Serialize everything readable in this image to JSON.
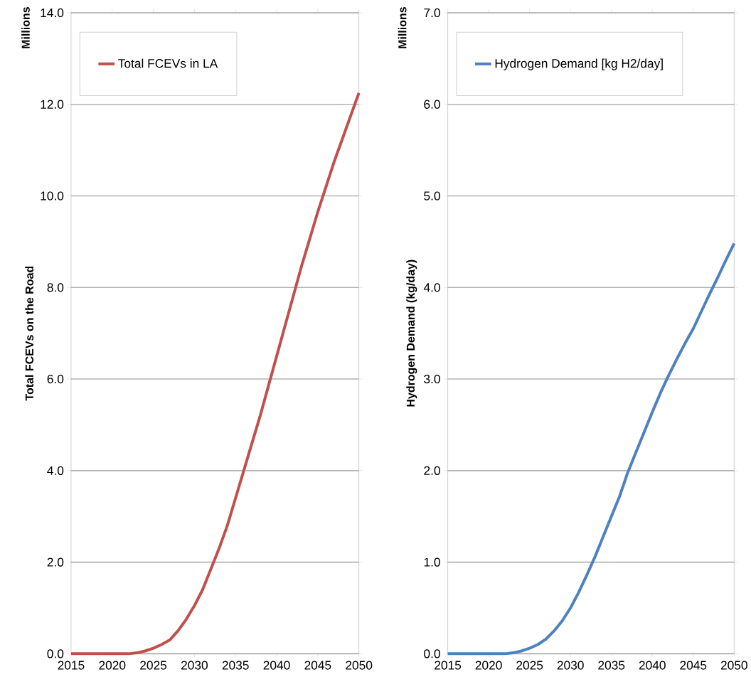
{
  "chart_data": [
    {
      "type": "line",
      "ylabel": "Total FCEVs on the Road",
      "annotations": [
        "Millions"
      ],
      "legend": "top left",
      "grid": "y",
      "xlim": [
        2015,
        2050
      ],
      "xticks": [
        2015,
        2020,
        2025,
        2030,
        2035,
        2040,
        2045,
        2050
      ],
      "ylim": [
        0,
        14
      ],
      "yticks": [
        {
          "value": 0,
          "label": "0.0"
        },
        {
          "value": 2,
          "label": "2.0"
        },
        {
          "value": 4,
          "label": "4.0"
        },
        {
          "value": 6,
          "label": "6.0"
        },
        {
          "value": 8,
          "label": "8.0"
        },
        {
          "value": 10,
          "label": "10.0"
        },
        {
          "value": 12,
          "label": "12.0"
        },
        {
          "value": 14,
          "label": "14.0"
        }
      ],
      "x": [
        2015,
        2016,
        2017,
        2018,
        2019,
        2020,
        2021,
        2022,
        2023,
        2024,
        2025,
        2026,
        2027,
        2028,
        2029,
        2030,
        2031,
        2032,
        2033,
        2034,
        2035,
        2036,
        2037,
        2038,
        2039,
        2040,
        2041,
        2042,
        2043,
        2044,
        2045,
        2046,
        2047,
        2048,
        2049,
        2050
      ],
      "series": [
        {
          "name": "Total FCEVs in LA",
          "color": "#c0504d",
          "values": [
            0,
            0,
            0,
            0,
            0,
            0,
            0,
            0,
            0.02,
            0.06,
            0.12,
            0.2,
            0.3,
            0.5,
            0.75,
            1.05,
            1.4,
            1.85,
            2.3,
            2.8,
            3.4,
            4.0,
            4.6,
            5.2,
            5.85,
            6.5,
            7.15,
            7.8,
            8.45,
            9.05,
            9.65,
            10.2,
            10.75,
            11.25,
            11.75,
            12.25
          ]
        }
      ]
    },
    {
      "type": "line",
      "ylabel": "Hydrogen Demand (kg/day)",
      "annotations": [
        "Millions"
      ],
      "legend": "top left",
      "grid": "y",
      "xlim": [
        2015,
        2050
      ],
      "xticks": [
        2015,
        2020,
        2025,
        2030,
        2035,
        2040,
        2045,
        2050
      ],
      "ylim": [
        0,
        7
      ],
      "yticks": [
        {
          "value": 0,
          "label": "0.0"
        },
        {
          "value": 1,
          "label": "1.0"
        },
        {
          "value": 2,
          "label": "2.0"
        },
        {
          "value": 3,
          "label": "3.0"
        },
        {
          "value": 4,
          "label": "4.0"
        },
        {
          "value": 5,
          "label": "5.0"
        },
        {
          "value": 6,
          "label": "6.0"
        },
        {
          "value": 7,
          "label": "7.0"
        }
      ],
      "x": [
        2015,
        2016,
        2017,
        2018,
        2019,
        2020,
        2021,
        2022,
        2023,
        2024,
        2025,
        2026,
        2027,
        2028,
        2029,
        2030,
        2031,
        2032,
        2033,
        2034,
        2035,
        2036,
        2037,
        2038,
        2039,
        2040,
        2041,
        2042,
        2043,
        2044,
        2045,
        2046,
        2047,
        2048,
        2049,
        2050
      ],
      "series": [
        {
          "name": "Hydrogen Demand [kg H2/day]",
          "color": "#4f81bd",
          "values": [
            0,
            0,
            0,
            0,
            0,
            0,
            0,
            0,
            0.01,
            0.03,
            0.06,
            0.1,
            0.16,
            0.25,
            0.36,
            0.5,
            0.67,
            0.86,
            1.06,
            1.28,
            1.5,
            1.72,
            1.98,
            2.2,
            2.42,
            2.64,
            2.85,
            3.04,
            3.22,
            3.39,
            3.55,
            3.74,
            3.93,
            4.11,
            4.3,
            4.48
          ]
        }
      ]
    }
  ]
}
